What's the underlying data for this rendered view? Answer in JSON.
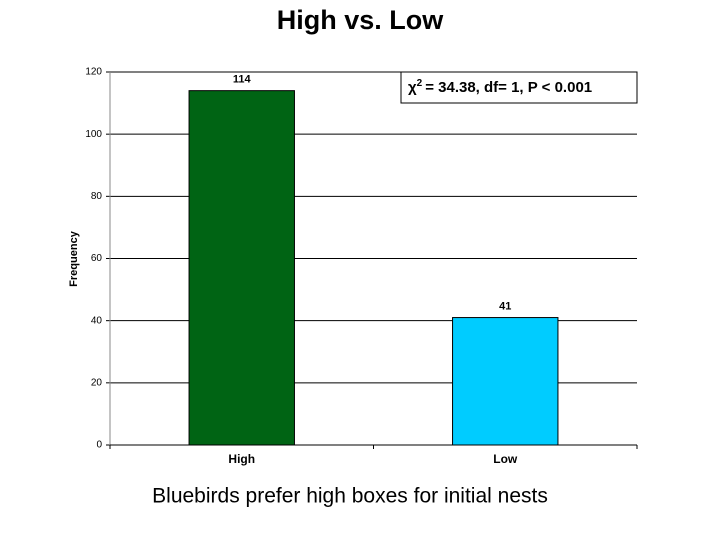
{
  "chart_data": {
    "type": "bar",
    "title": "High vs. Low",
    "y_label": "Frequency",
    "caption": "Bluebirds prefer high boxes for initial nests",
    "annotation": {
      "symbol": "χ",
      "superscript": "2",
      "text": "= 34.38, df= 1, P < 0.001"
    },
    "categories": [
      "High",
      "Low"
    ],
    "values": [
      114,
      41
    ],
    "colors": [
      "#006414",
      "#00ccff"
    ],
    "ylim": [
      0,
      120
    ],
    "yticks": [
      0,
      20,
      40,
      60,
      80,
      100,
      120
    ],
    "grid": true
  }
}
